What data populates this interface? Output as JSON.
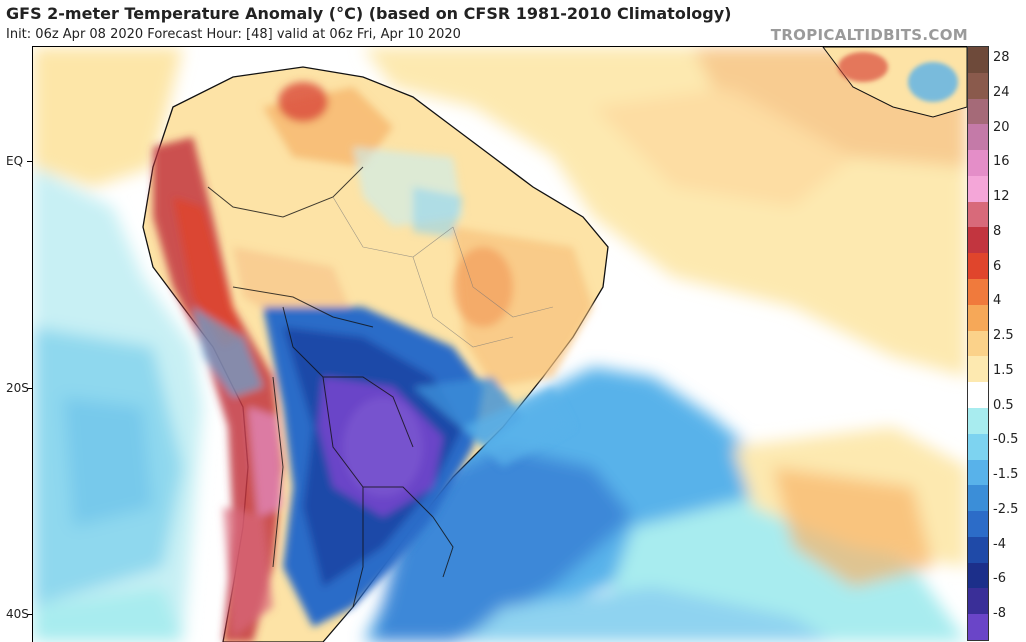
{
  "header": {
    "title": "GFS 2-meter Temperature Anomaly (°C) (based on CFSR 1981-2010 Climatology)",
    "subtitle": "Init: 06z Apr 08 2020   Forecast Hour: [48]   valid at 06z Fri, Apr 10 2020",
    "brand": "TROPICALTIDBITS.COM"
  },
  "map": {
    "region": "South America and South Atlantic",
    "lat_labels": [
      "EQ",
      "20S",
      "40S"
    ],
    "colors": {
      "cold_core": "#6a45c8",
      "very_cold": "#1f4fa8",
      "cold": "#3e88d8",
      "cool": "#8fd3f0",
      "neutral": "#ffffff",
      "warm": "#fde6a8",
      "warmer": "#f6b36a",
      "hot": "#d9493a",
      "very_hot": "#b02a3a"
    }
  },
  "colorbar": {
    "labels": [
      "28",
      "24",
      "20",
      "16",
      "12",
      "8",
      "6",
      "4",
      "2.5",
      "1.5",
      "0.5",
      "-0.5",
      "-1.5",
      "-2.5",
      "-4",
      "-6",
      "-8"
    ],
    "colors": [
      "#6e4a3a",
      "#8a5a4c",
      "#a56a78",
      "#c47aa8",
      "#e48ec8",
      "#f4a6d8",
      "#d86a7a",
      "#c2353f",
      "#e0452c",
      "#f07a3c",
      "#f6a858",
      "#fbd28a",
      "#fde9b0",
      "#ffffff",
      "#a8ecef",
      "#7dd3f0",
      "#58b2ea",
      "#3b8ed8",
      "#2c6cc8",
      "#1f4aa8",
      "#1c2f8a",
      "#3a2f98",
      "#6a45c8"
    ]
  }
}
